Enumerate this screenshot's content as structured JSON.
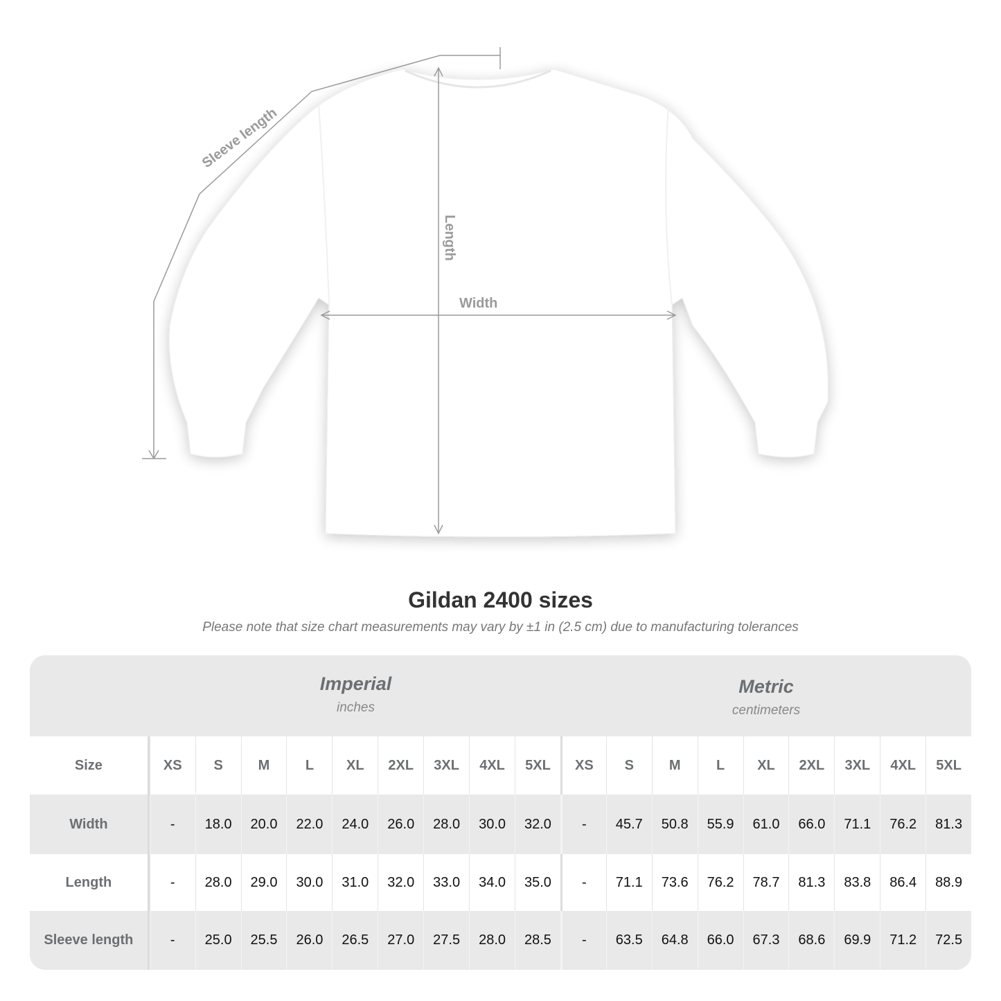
{
  "diagram": {
    "labels": {
      "sleeve": "Sleeve length",
      "length": "Length",
      "width": "Width"
    },
    "garment_color": "#ffffff",
    "measure_line_color": "#9a9a9a"
  },
  "title": "Gildan 2400 sizes",
  "subtitle": "Please note that size chart measurements may vary by ±1 in (2.5 cm) due to manufacturing tolerances",
  "table": {
    "imperial": {
      "name": "Imperial",
      "unit": "inches"
    },
    "metric": {
      "name": "Metric",
      "unit": "centimeters"
    },
    "size_label": "Size",
    "sizes": [
      "XS",
      "S",
      "M",
      "L",
      "XL",
      "2XL",
      "3XL",
      "4XL",
      "5XL"
    ],
    "rows": [
      {
        "label": "Width",
        "imperial": [
          "-",
          "18.0",
          "20.0",
          "22.0",
          "24.0",
          "26.0",
          "28.0",
          "30.0",
          "32.0"
        ],
        "metric": [
          "-",
          "45.7",
          "50.8",
          "55.9",
          "61.0",
          "66.0",
          "71.1",
          "76.2",
          "81.3"
        ]
      },
      {
        "label": "Length",
        "imperial": [
          "-",
          "28.0",
          "29.0",
          "30.0",
          "31.0",
          "32.0",
          "33.0",
          "34.0",
          "35.0"
        ],
        "metric": [
          "-",
          "71.1",
          "73.6",
          "76.2",
          "78.7",
          "81.3",
          "83.8",
          "86.4",
          "88.9"
        ]
      },
      {
        "label": "Sleeve length",
        "imperial": [
          "-",
          "25.0",
          "25.5",
          "26.0",
          "26.5",
          "27.0",
          "27.5",
          "28.0",
          "28.5"
        ],
        "metric": [
          "-",
          "63.5",
          "64.8",
          "66.0",
          "67.3",
          "68.6",
          "69.9",
          "71.2",
          "72.5"
        ]
      }
    ]
  }
}
